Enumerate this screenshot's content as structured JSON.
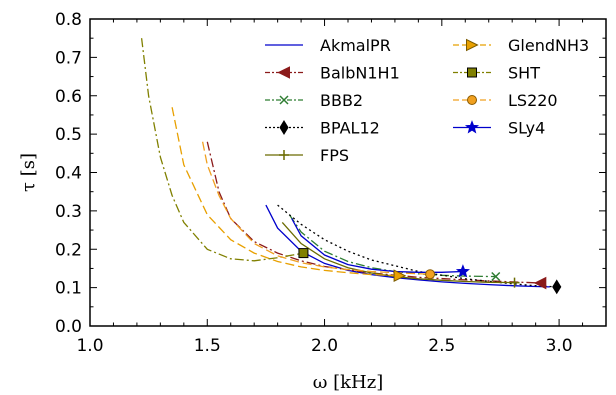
{
  "chart_data": {
    "type": "line",
    "xlabel": "ω [kHz]",
    "ylabel": "τ [s]",
    "xlim": [
      1.0,
      3.2
    ],
    "ylim": [
      0.0,
      0.8
    ],
    "xticks": [
      "1.0",
      "1.5",
      "2.0",
      "2.5",
      "3.0"
    ],
    "yticks": [
      "0.0",
      "0.1",
      "0.2",
      "0.3",
      "0.4",
      "0.5",
      "0.6",
      "0.7",
      "0.8"
    ],
    "grid": false,
    "legend_position": "top-right",
    "series": [
      {
        "name": "AkmalPR",
        "color": "#0000cc",
        "dash": "solid",
        "marker": "none",
        "x": [
          1.75,
          1.8,
          1.9,
          2.0,
          2.1,
          2.2,
          2.3,
          2.4,
          2.5,
          2.6,
          2.7,
          2.8,
          2.9,
          2.96
        ],
        "y": [
          0.315,
          0.255,
          0.195,
          0.163,
          0.145,
          0.134,
          0.126,
          0.12,
          0.115,
          0.111,
          0.108,
          0.105,
          0.103,
          0.102
        ]
      },
      {
        "name": "BalbN1H1",
        "color": "#8b1a1a",
        "dash": "dashdot",
        "marker": "triangle-left",
        "x": [
          1.5,
          1.55,
          1.6,
          1.7,
          1.8,
          1.9,
          2.0,
          2.2,
          2.4,
          2.6,
          2.8,
          2.92
        ],
        "y": [
          0.48,
          0.35,
          0.28,
          0.22,
          0.19,
          0.17,
          0.155,
          0.138,
          0.127,
          0.12,
          0.115,
          0.112
        ],
        "marker_point": [
          2.92,
          0.112
        ]
      },
      {
        "name": "BBB2",
        "color": "#2e7d32",
        "dash": "dashdot",
        "marker": "x",
        "x": [
          1.85,
          1.9,
          2.0,
          2.1,
          2.2,
          2.3,
          2.4,
          2.5,
          2.6,
          2.7,
          2.73
        ],
        "y": [
          0.29,
          0.245,
          0.195,
          0.168,
          0.152,
          0.142,
          0.136,
          0.132,
          0.13,
          0.129,
          0.129
        ],
        "marker_point": [
          2.73,
          0.129
        ]
      },
      {
        "name": "BPAL12",
        "color": "#000000",
        "dash": "dotted",
        "marker": "diamond",
        "x": [
          1.8,
          1.9,
          2.0,
          2.1,
          2.2,
          2.4,
          2.6,
          2.8,
          2.9,
          2.99
        ],
        "y": [
          0.315,
          0.265,
          0.225,
          0.195,
          0.172,
          0.142,
          0.123,
          0.11,
          0.105,
          0.102
        ],
        "marker_point": [
          2.99,
          0.102
        ]
      },
      {
        "name": "FPS",
        "color": "#6b6b00",
        "dash": "solid",
        "marker": "plus",
        "x": [
          1.82,
          1.9,
          2.0,
          2.1,
          2.2,
          2.3,
          2.4,
          2.5,
          2.6,
          2.7,
          2.81
        ],
        "y": [
          0.27,
          0.215,
          0.175,
          0.152,
          0.138,
          0.129,
          0.123,
          0.119,
          0.116,
          0.114,
          0.113
        ],
        "marker_point": [
          2.81,
          0.113
        ]
      },
      {
        "name": "GlendNH3",
        "color": "#e8a000",
        "dash": "dashed",
        "marker": "triangle-right",
        "x": [
          1.35,
          1.4,
          1.5,
          1.6,
          1.7,
          1.8,
          1.9,
          2.0,
          2.1,
          2.2,
          2.32
        ],
        "y": [
          0.57,
          0.42,
          0.29,
          0.225,
          0.19,
          0.168,
          0.154,
          0.145,
          0.139,
          0.134,
          0.131
        ],
        "marker_point": [
          2.32,
          0.131
        ]
      },
      {
        "name": "SHT",
        "color": "#808000",
        "dash": "dashdot",
        "marker": "square",
        "x": [
          1.22,
          1.25,
          1.3,
          1.35,
          1.4,
          1.5,
          1.6,
          1.7,
          1.8,
          1.91
        ],
        "y": [
          0.75,
          0.6,
          0.44,
          0.34,
          0.27,
          0.2,
          0.175,
          0.17,
          0.178,
          0.19
        ],
        "marker_point": [
          1.91,
          0.19
        ]
      },
      {
        "name": "LS220",
        "color": "#f0a020",
        "dash": "dashed",
        "marker": "circle",
        "x": [
          1.48,
          1.5,
          1.55,
          1.6,
          1.7,
          1.8,
          1.9,
          2.0,
          2.1,
          2.2,
          2.3,
          2.45
        ],
        "y": [
          0.48,
          0.42,
          0.34,
          0.28,
          0.215,
          0.183,
          0.165,
          0.154,
          0.147,
          0.142,
          0.139,
          0.135
        ],
        "marker_point": [
          2.45,
          0.135
        ]
      },
      {
        "name": "SLy4",
        "color": "#0000cc",
        "dash": "solid",
        "marker": "star",
        "x": [
          1.86,
          1.9,
          2.0,
          2.1,
          2.2,
          2.3,
          2.4,
          2.5,
          2.59
        ],
        "y": [
          0.28,
          0.235,
          0.185,
          0.16,
          0.148,
          0.142,
          0.14,
          0.14,
          0.142
        ],
        "marker_point": [
          2.59,
          0.142
        ]
      }
    ]
  }
}
